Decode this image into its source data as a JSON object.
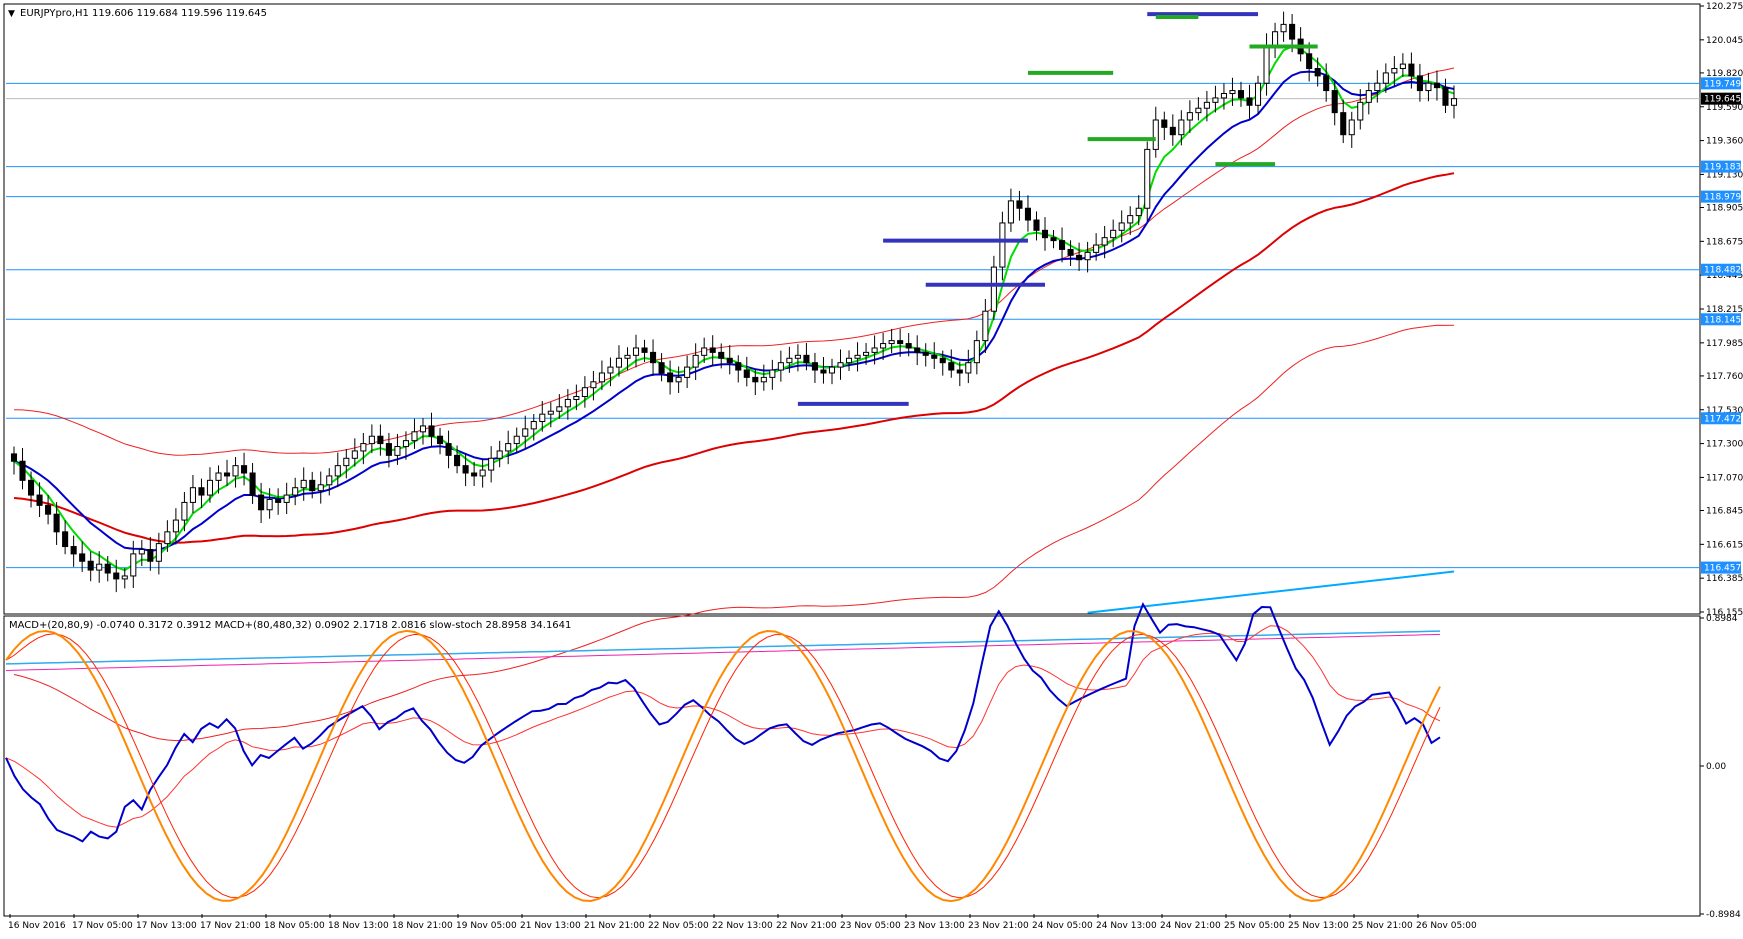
{
  "header": {
    "symbol_line": "EURJPYpro,H1  119.606 119.684 119.596 119.645",
    "indicator_line": "MACD+(20,80,9) -0.0740 0.3172 0.3912  MACD+(80,480,32) 0.0902 2.1718 2.0816  slow-stoch 28.8958 34.1641"
  },
  "colors": {
    "background": "#ffffff",
    "frame": "#000000",
    "hline": "#1e90ff",
    "hline_label_bg": "#1e90ff",
    "current_price_bg": "#000000",
    "ema_fast": "#00dd00",
    "ema_mid": "#0000cc",
    "ema_slow": "#dd0000",
    "envelope": "#ee2222",
    "trendline_cyan": "#00aaff",
    "marker_blue": "#3333bb",
    "marker_green": "#22aa22",
    "stoch_main": "#ff8800",
    "stoch_signal": "#ff2200",
    "macd_main": "#0000cc",
    "macd_signal": "#ff3333",
    "macd2_main": "#33aaee",
    "macd2_signal": "#ee22aa"
  },
  "chart_data": [
    {
      "type": "candlestick",
      "title": "EURJPYpro,H1",
      "ohlc_last": {
        "open": 119.606,
        "high": 119.684,
        "low": 119.596,
        "close": 119.645
      },
      "ylim": [
        116.155,
        120.275
      ],
      "price_ticks": [
        "120.275",
        "120.045",
        "119.820",
        "119.590",
        "119.360",
        "119.130",
        "118.905",
        "118.675",
        "118.445",
        "118.215",
        "117.985",
        "117.760",
        "117.530",
        "117.300",
        "117.070",
        "116.845",
        "116.615",
        "116.385",
        "116.155"
      ],
      "time_ticks": [
        "16 Nov 2016",
        "17 Nov 05:00",
        "17 Nov 13:00",
        "17 Nov 21:00",
        "18 Nov 05:00",
        "18 Nov 13:00",
        "18 Nov 21:00",
        "19 Nov 05:00",
        "21 Nov 13:00",
        "21 Nov 21:00",
        "22 Nov 05:00",
        "22 Nov 13:00",
        "22 Nov 21:00",
        "23 Nov 05:00",
        "23 Nov 13:00",
        "23 Nov 21:00",
        "24 Nov 05:00",
        "24 Nov 13:00",
        "24 Nov 21:00",
        "25 Nov 05:00",
        "25 Nov 13:00",
        "25 Nov 21:00",
        "26 Nov 05:00"
      ],
      "horizontal_levels": [
        {
          "price": 119.749,
          "label": "119.749"
        },
        {
          "price": 119.183,
          "label": "119.183"
        },
        {
          "price": 118.979,
          "label": "118.979"
        },
        {
          "price": 118.482,
          "label": "118.482"
        },
        {
          "price": 118.145,
          "label": "118.145"
        },
        {
          "price": 117.472,
          "label": "117.472"
        },
        {
          "price": 116.457,
          "label": "116.457"
        }
      ],
      "current_price": {
        "price": 119.645,
        "label": "119.645"
      },
      "closes": [
        117.18,
        117.05,
        116.95,
        116.88,
        116.82,
        116.7,
        116.6,
        116.55,
        116.5,
        116.44,
        116.48,
        116.42,
        116.38,
        116.4,
        116.55,
        116.58,
        116.5,
        116.62,
        116.7,
        116.78,
        116.9,
        117.0,
        116.95,
        117.05,
        117.1,
        117.08,
        117.15,
        117.1,
        116.95,
        116.85,
        116.92,
        116.9,
        116.95,
        117.0,
        117.05,
        116.98,
        117.02,
        117.08,
        117.15,
        117.2,
        117.25,
        117.3,
        117.35,
        117.3,
        117.22,
        117.28,
        117.32,
        117.38,
        117.42,
        117.35,
        117.3,
        117.22,
        117.15,
        117.1,
        117.08,
        117.12,
        117.2,
        117.25,
        117.3,
        117.35,
        117.4,
        117.45,
        117.5,
        117.52,
        117.55,
        117.6,
        117.62,
        117.68,
        117.72,
        117.78,
        117.82,
        117.88,
        117.9,
        117.95,
        117.92,
        117.85,
        117.78,
        117.72,
        117.75,
        117.82,
        117.9,
        117.95,
        117.92,
        117.88,
        117.85,
        117.8,
        117.75,
        117.72,
        117.75,
        117.8,
        117.85,
        117.88,
        117.9,
        117.85,
        117.8,
        117.78,
        117.82,
        117.85,
        117.88,
        117.9,
        117.92,
        117.95,
        117.98,
        118.0,
        117.98,
        117.95,
        117.92,
        117.9,
        117.88,
        117.85,
        117.8,
        117.78,
        117.85,
        118.0,
        118.2,
        118.5,
        118.8,
        118.95,
        118.9,
        118.82,
        118.75,
        118.7,
        118.68,
        118.62,
        118.58,
        118.55,
        118.6,
        118.65,
        118.7,
        118.75,
        118.8,
        118.85,
        118.9,
        119.3,
        119.5,
        119.45,
        119.4,
        119.5,
        119.55,
        119.58,
        119.62,
        119.65,
        119.68,
        119.7,
        119.65,
        119.6,
        119.75,
        120.0,
        120.1,
        120.15,
        120.05,
        119.95,
        119.85,
        119.8,
        119.7,
        119.55,
        119.4,
        119.5,
        119.62,
        119.7,
        119.75,
        119.82,
        119.85,
        119.88,
        119.8,
        119.7,
        119.75,
        119.72,
        119.6,
        119.645
      ],
      "series": [
        {
          "name": "",
          "kind": "ema_fast"
        },
        {
          "name": "",
          "kind": "ema_mid"
        },
        {
          "name": "",
          "kind": "ema_slow"
        },
        {
          "name": "",
          "kind": "envelope_upper"
        },
        {
          "name": "",
          "kind": "envelope_lower"
        }
      ]
    },
    {
      "type": "line",
      "title": "MACD+(20,80,9) / MACD+(80,480,32) / slow-stoch",
      "ylim": [
        -0.8984,
        0.8984
      ],
      "y_ticks": [
        "0.8984",
        "0.00",
        "-0.8984"
      ],
      "series": [
        {
          "name": "slow-stoch",
          "kind": "stoch_main",
          "last": 28.8958
        },
        {
          "name": "",
          "kind": "stoch_signal",
          "last": 34.1641
        },
        {
          "name": "MACD+(20,80,9)",
          "kind": "macd_main",
          "last": -0.074
        },
        {
          "name": "",
          "kind": "macd_signal",
          "last": 0.3172
        },
        {
          "name": "MACD+(80,480,32)",
          "kind": "macd2_main",
          "last": 0.0902
        },
        {
          "name": "",
          "kind": "macd2_signal",
          "last": 2.1718
        }
      ]
    }
  ]
}
